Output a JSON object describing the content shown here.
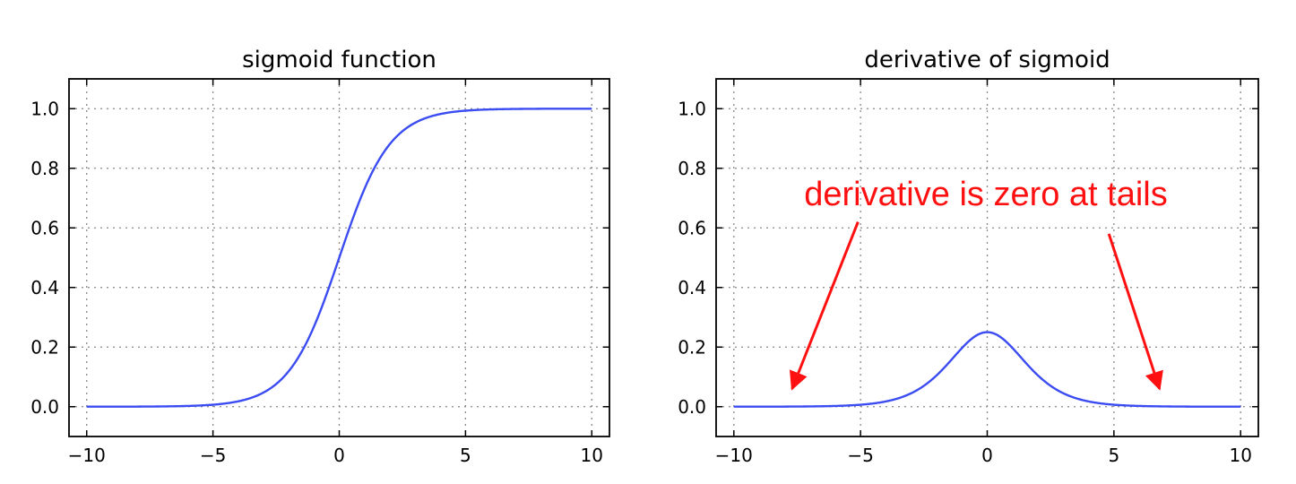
{
  "colors": {
    "curve": "#3b4cf2",
    "annotation": "#ff1010",
    "grid": "#888888",
    "axes": "#000000"
  },
  "chart_data": [
    {
      "type": "line",
      "title": "sigmoid function",
      "function": "sigmoid",
      "xlim": [
        -10.7,
        10.7
      ],
      "ylim": [
        -0.1,
        1.1
      ],
      "xticks": [
        -10,
        -5,
        0,
        5,
        10
      ],
      "xtick_labels": [
        "−10",
        "−5",
        "0",
        "5",
        "10"
      ],
      "yticks": [
        0.0,
        0.2,
        0.4,
        0.6,
        0.8,
        1.0
      ],
      "ytick_labels": [
        "0.0",
        "0.2",
        "0.4",
        "0.6",
        "0.8",
        "1.0"
      ],
      "grid": true,
      "series": [
        {
          "x": [
            -10,
            -9,
            -8,
            -7,
            -6,
            -5,
            -4,
            -3,
            -2,
            -1,
            0,
            1,
            2,
            3,
            4,
            5,
            6,
            7,
            8,
            9,
            10
          ],
          "y": [
            0.0,
            0.0001,
            0.0003,
            0.0009,
            0.0025,
            0.0067,
            0.018,
            0.0474,
            0.1192,
            0.2689,
            0.5,
            0.7311,
            0.8808,
            0.9526,
            0.982,
            0.9933,
            0.9975,
            0.9991,
            0.9997,
            0.9999,
            1.0
          ]
        }
      ]
    },
    {
      "type": "line",
      "title": "derivative of sigmoid",
      "function": "sigmoid_derivative",
      "xlim": [
        -10.7,
        10.7
      ],
      "ylim": [
        -0.1,
        1.1
      ],
      "xticks": [
        -10,
        -5,
        0,
        5,
        10
      ],
      "xtick_labels": [
        "−10",
        "−5",
        "0",
        "5",
        "10"
      ],
      "yticks": [
        0.0,
        0.2,
        0.4,
        0.6,
        0.8,
        1.0
      ],
      "ytick_labels": [
        "0.0",
        "0.2",
        "0.4",
        "0.6",
        "0.8",
        "1.0"
      ],
      "grid": true,
      "series": [
        {
          "x": [
            -10,
            -9,
            -8,
            -7,
            -6,
            -5,
            -4,
            -3,
            -2,
            -1,
            0,
            1,
            2,
            3,
            4,
            5,
            6,
            7,
            8,
            9,
            10
          ],
          "y": [
            0.0,
            0.0001,
            0.0003,
            0.0009,
            0.0025,
            0.0066,
            0.0177,
            0.0452,
            0.105,
            0.1966,
            0.25,
            0.1966,
            0.105,
            0.0452,
            0.0177,
            0.0066,
            0.0025,
            0.0009,
            0.0003,
            0.0001,
            0.0
          ]
        }
      ],
      "annotation": {
        "text": "derivative is zero at tails",
        "arrows": [
          {
            "from": [
              -5.1,
              0.62
            ],
            "to": [
              -7.7,
              0.06
            ]
          },
          {
            "from": [
              4.8,
              0.58
            ],
            "to": [
              6.8,
              0.06
            ]
          }
        ]
      }
    }
  ]
}
